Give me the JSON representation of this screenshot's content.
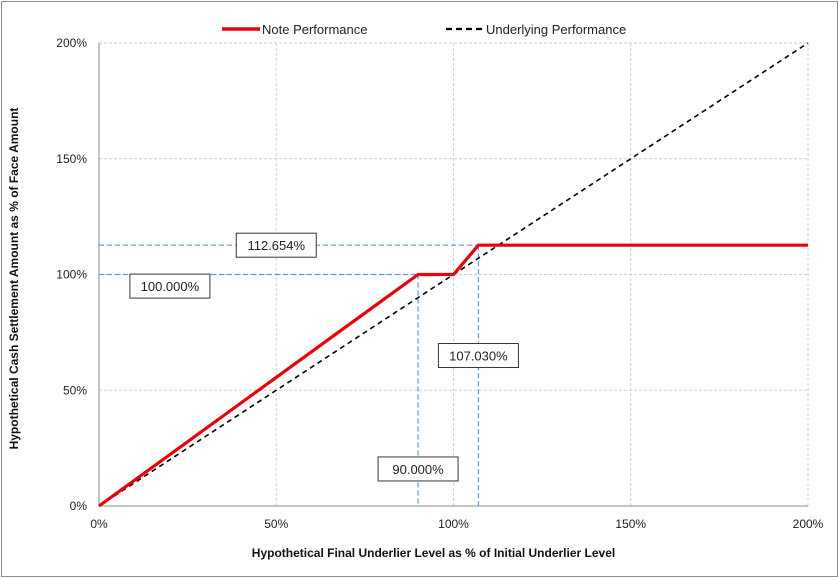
{
  "chart_data": {
    "type": "line",
    "xlabel": "Hypothetical Final Underlier Level as % of Initial Underlier Level",
    "ylabel": "Hypothetical Cash Settlement Amount as % of Face Amount",
    "xlim": [
      0,
      200
    ],
    "ylim": [
      0,
      200
    ],
    "x_ticks": [
      "0%",
      "50%",
      "100%",
      "150%",
      "200%"
    ],
    "y_ticks": [
      "0%",
      "50%",
      "100%",
      "150%",
      "200%"
    ],
    "grid": true,
    "legend_position": "top",
    "series": [
      {
        "name": "Note Performance",
        "color": "#e8000b",
        "style": "solid",
        "x": [
          0,
          90,
          100,
          107.03,
          200
        ],
        "y": [
          0,
          100,
          100,
          112.654,
          112.654
        ]
      },
      {
        "name": "Underlying Performance",
        "color": "#000000",
        "style": "dashed",
        "x": [
          0,
          200
        ],
        "y": [
          0,
          200
        ]
      }
    ],
    "reference_lines": [
      {
        "kind": "horizontal",
        "y": 100,
        "x_to": 90
      },
      {
        "kind": "horizontal",
        "y": 112.654,
        "x_to": 107.03
      },
      {
        "kind": "vertical",
        "x": 90,
        "y_to": 100
      },
      {
        "kind": "vertical",
        "x": 107.03,
        "y_to": 112.654
      }
    ],
    "annotations": [
      {
        "text": "112.654%",
        "x": 50,
        "y": 112.654
      },
      {
        "text": "100.000%",
        "x": 20,
        "y": 95
      },
      {
        "text": "107.030%",
        "x": 107.03,
        "y": 65
      },
      {
        "text": "90.000%",
        "x": 90,
        "y": 16
      }
    ]
  }
}
